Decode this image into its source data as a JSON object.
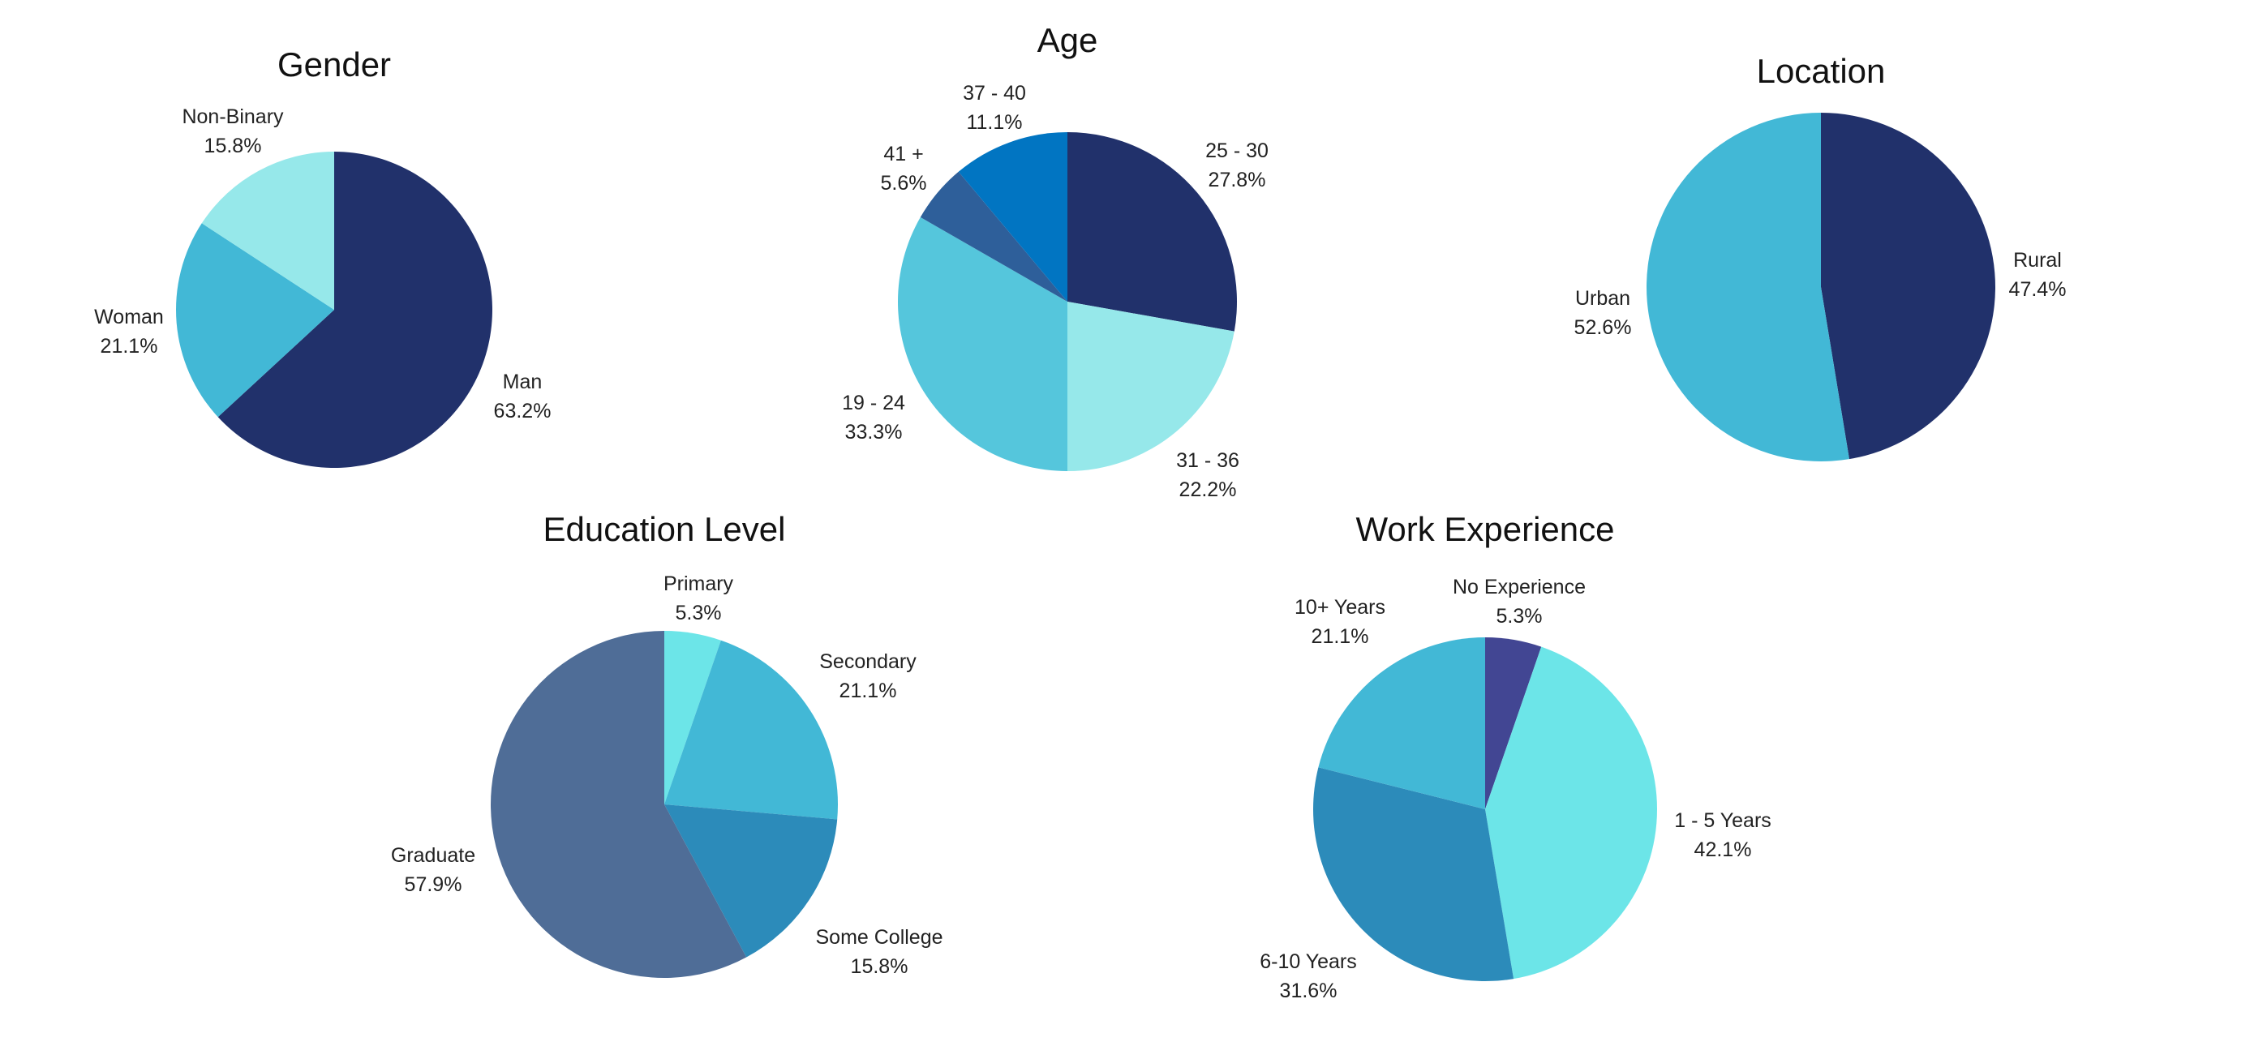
{
  "chart_data": [
    {
      "type": "pie",
      "title": "Gender",
      "categories": [
        "Man",
        "Woman",
        "Non-Binary"
      ],
      "values": [
        63.2,
        21.1,
        15.8
      ],
      "labels": [
        "63.2%",
        "21.1%",
        "15.8%"
      ],
      "colors": [
        "#21316b",
        "#42b8d6",
        "#96e8ea"
      ],
      "start": "12 o'clock, clockwise"
    },
    {
      "type": "pie",
      "title": "Age",
      "categories": [
        "25 - 30",
        "31 - 36",
        "19 - 24",
        "41 +",
        "37 - 40"
      ],
      "values": [
        27.8,
        22.2,
        33.3,
        5.6,
        11.1
      ],
      "labels": [
        "27.8%",
        "22.2%",
        "33.3%",
        "5.6%",
        "11.1%"
      ],
      "colors": [
        "#21316b",
        "#96e8ea",
        "#55c6dc",
        "#2e5f9a",
        "#0175c2"
      ],
      "start": "12 o'clock, clockwise"
    },
    {
      "type": "pie",
      "title": "Location",
      "categories": [
        "Rural",
        "Urban"
      ],
      "values": [
        47.4,
        52.6
      ],
      "labels": [
        "47.4%",
        "52.6%"
      ],
      "colors": [
        "#21316b",
        "#42b8d6"
      ],
      "start": "12 o'clock, clockwise"
    },
    {
      "type": "pie",
      "title": "Education Level",
      "categories": [
        "Primary",
        "Secondary",
        "Some College",
        "Graduate"
      ],
      "values": [
        5.3,
        21.1,
        15.8,
        57.9
      ],
      "labels": [
        "5.3%",
        "21.1%",
        "15.8%",
        "57.9%"
      ],
      "colors": [
        "#6ce5e8",
        "#42b8d6",
        "#2c8bba",
        "#4f6d97"
      ],
      "start": "12 o'clock, clockwise"
    },
    {
      "type": "pie",
      "title": "Work Experience",
      "categories": [
        "No Experience",
        "1 - 5 Years",
        "6-10 Years",
        "10+ Years"
      ],
      "values": [
        5.3,
        42.1,
        31.6,
        21.1
      ],
      "labels": [
        "5.3%",
        "42.1%",
        "31.6%",
        "21.1%"
      ],
      "colors": [
        "#424693",
        "#6ce5e8",
        "#2c8bba",
        "#42b8d6"
      ],
      "start": "12 o'clock, clockwise"
    }
  ]
}
